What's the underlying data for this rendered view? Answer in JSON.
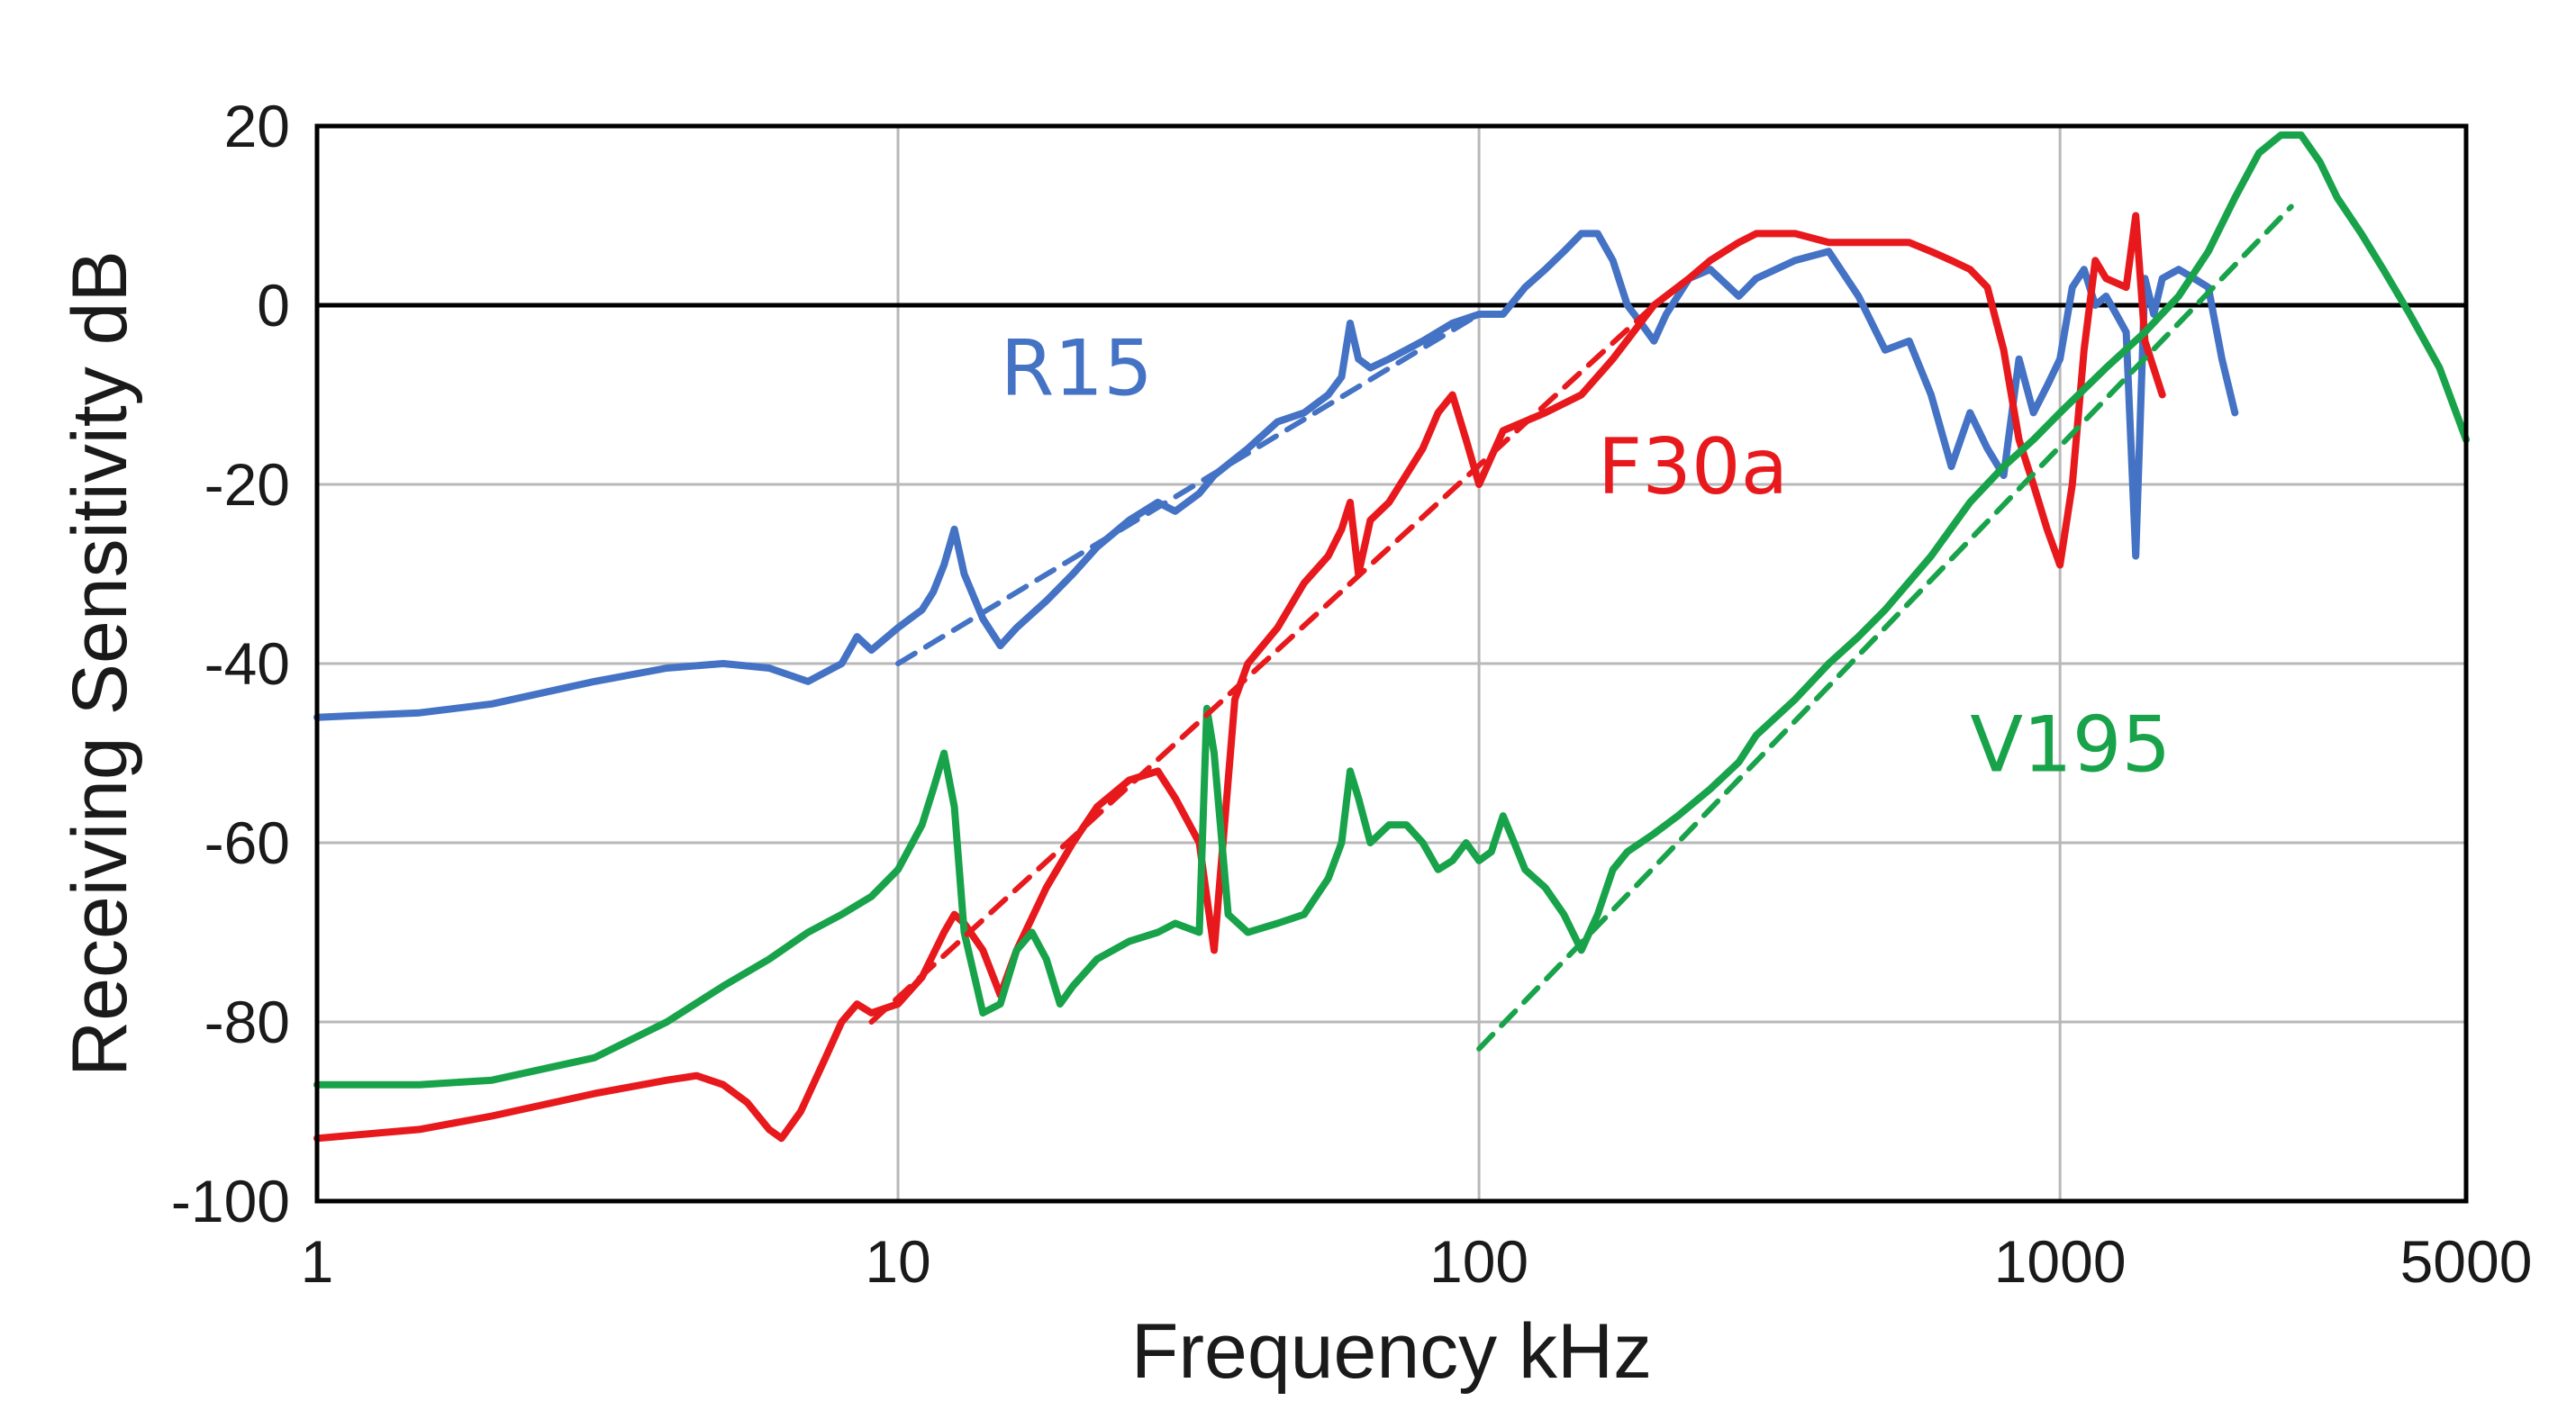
{
  "chart_data": {
    "type": "line",
    "xlabel": "Frequency  kHz",
    "ylabel": "Receiving Sensitivity  dB",
    "xscale": "log",
    "xlim": [
      1,
      5000
    ],
    "ylim": [
      -100,
      20
    ],
    "grid": true,
    "x_ticks": [
      1,
      10,
      100,
      1000,
      5000
    ],
    "x_tick_labels": [
      "1",
      "10",
      "100",
      "1000",
      "5000"
    ],
    "y_ticks": [
      -100,
      -80,
      -60,
      -40,
      -20,
      0,
      20
    ],
    "y_tick_labels": [
      "-100",
      "-80",
      "-60",
      "-40",
      "-20",
      "0",
      "20"
    ],
    "reference_line": {
      "y": 0,
      "color": "#000000"
    },
    "series": [
      {
        "name": "R15",
        "color": "#4472C4",
        "style": "solid",
        "x": [
          1,
          1.5,
          2,
          3,
          4,
          5,
          6,
          7,
          8,
          8.5,
          9,
          10,
          11,
          11.5,
          12,
          12.5,
          13,
          14,
          15,
          16,
          18,
          20,
          22,
          25,
          28,
          30,
          33,
          35,
          40,
          45,
          50,
          55,
          58,
          60,
          62,
          65,
          70,
          80,
          90,
          100,
          110,
          120,
          130,
          140,
          150,
          160,
          170,
          180,
          190,
          200,
          210,
          230,
          250,
          280,
          300,
          350,
          400,
          450,
          500,
          550,
          600,
          650,
          700,
          750,
          800,
          850,
          900,
          950,
          1000,
          1050,
          1100,
          1150,
          1200,
          1250,
          1300,
          1350,
          1400,
          1450,
          1500,
          1600,
          1700,
          1800,
          1900,
          2000
        ],
        "y": [
          -46,
          -45.5,
          -44.5,
          -42,
          -40.5,
          -40,
          -40.5,
          -42,
          -40,
          -37,
          -38.5,
          -36,
          -34,
          -32,
          -29,
          -25,
          -30,
          -35,
          -38,
          -36,
          -33,
          -30,
          -27,
          -24,
          -22,
          -23,
          -21,
          -19,
          -16,
          -13,
          -12,
          -10,
          -8,
          -2,
          -6,
          -7,
          -6,
          -4,
          -2,
          -1,
          -1,
          2,
          4,
          6,
          8,
          8,
          5,
          0,
          -2,
          -4,
          -1,
          3,
          4,
          1,
          3,
          5,
          6,
          1,
          -5,
          -4,
          -10,
          -18,
          -12,
          -16,
          -19,
          -6,
          -12,
          -9,
          -6,
          2,
          4,
          0,
          1,
          -1,
          -3,
          -28,
          3,
          -1,
          3,
          4,
          3,
          2,
          -6,
          -12
        ]
      },
      {
        "name": "F30a",
        "color": "#E8191C",
        "style": "solid",
        "x": [
          1,
          1.5,
          2,
          3,
          4,
          4.5,
          5,
          5.5,
          6,
          6.3,
          6.8,
          7.5,
          8,
          8.5,
          9,
          10,
          11,
          12,
          12.5,
          13,
          14,
          15,
          16,
          18,
          20,
          22,
          25,
          28,
          30,
          33,
          35,
          38,
          40,
          45,
          50,
          55,
          58,
          60,
          62,
          65,
          70,
          80,
          85,
          90,
          95,
          100,
          110,
          130,
          150,
          170,
          200,
          230,
          250,
          280,
          300,
          350,
          400,
          450,
          500,
          550,
          600,
          650,
          700,
          750,
          800,
          850,
          900,
          950,
          1000,
          1050,
          1100,
          1150,
          1200,
          1300,
          1350,
          1400,
          1500
        ],
        "y": [
          -93,
          -92,
          -90.5,
          -88,
          -86.5,
          -86,
          -87,
          -89,
          -92,
          -93,
          -90,
          -84,
          -80,
          -78,
          -79,
          -78,
          -75,
          -70,
          -68,
          -69,
          -72,
          -77,
          -72,
          -65,
          -60,
          -56,
          -53,
          -52,
          -55,
          -60,
          -72,
          -44,
          -40,
          -36,
          -31,
          -28,
          -25,
          -22,
          -30,
          -24,
          -22,
          -16,
          -12,
          -10,
          -15,
          -20,
          -14,
          -12,
          -10,
          -6,
          0,
          3,
          5,
          7,
          8,
          8,
          7,
          7,
          7,
          7,
          6,
          5,
          4,
          2,
          -5,
          -15,
          -20,
          -25,
          -29,
          -20,
          -5,
          5,
          3,
          2,
          10,
          -4,
          -10
        ]
      },
      {
        "name": "V195",
        "color": "#18A34A",
        "style": "solid",
        "x": [
          1,
          1.5,
          2,
          3,
          4,
          5,
          6,
          7,
          8,
          9,
          10,
          11,
          11.5,
          12,
          12.5,
          13,
          14,
          15,
          16,
          17,
          18,
          19,
          20,
          22,
          25,
          28,
          30,
          33,
          34,
          35,
          37,
          40,
          45,
          50,
          55,
          58,
          60,
          62,
          65,
          70,
          75,
          80,
          85,
          90,
          95,
          100,
          105,
          110,
          115,
          120,
          130,
          140,
          150,
          160,
          170,
          180,
          200,
          220,
          250,
          280,
          300,
          350,
          400,
          450,
          500,
          600,
          700,
          800,
          900,
          1000,
          1200,
          1400,
          1600,
          1800,
          2000,
          2200,
          2400,
          2600,
          2800,
          3000,
          3300,
          3600,
          4000,
          4500,
          5000
        ],
        "y": [
          -87,
          -87,
          -86.5,
          -84,
          -80,
          -76,
          -73,
          -70,
          -68,
          -66,
          -63,
          -58,
          -54,
          -50,
          -56,
          -70,
          -79,
          -78,
          -72,
          -70,
          -73,
          -78,
          -76,
          -73,
          -71,
          -70,
          -69,
          -70,
          -45,
          -50,
          -68,
          -70,
          -69,
          -68,
          -64,
          -60,
          -52,
          -55,
          -60,
          -58,
          -58,
          -60,
          -63,
          -62,
          -60,
          -62,
          -61,
          -57,
          -60,
          -63,
          -65,
          -68,
          -72,
          -68,
          -63,
          -61,
          -59,
          -57,
          -54,
          -51,
          -48,
          -44,
          -40,
          -37,
          -34,
          -28,
          -22,
          -18,
          -15,
          -12,
          -7,
          -3,
          1,
          6,
          12,
          17,
          19,
          19,
          16,
          12,
          8,
          4,
          -1,
          -7,
          -15
        ]
      },
      {
        "name": "R15 fit",
        "color": "#4472C4",
        "style": "dashed",
        "x": [
          10,
          100
        ],
        "y": [
          -40,
          -1
        ]
      },
      {
        "name": "F30a fit",
        "color": "#E8191C",
        "style": "dashed",
        "x": [
          9,
          200
        ],
        "y": [
          -80,
          0
        ]
      },
      {
        "name": "V195 fit",
        "color": "#18A34A",
        "style": "dashed",
        "x": [
          100,
          2500
        ],
        "y": [
          -83,
          11
        ]
      }
    ],
    "labels": [
      {
        "text": "R15",
        "color": "#4472C4",
        "x": 15,
        "y": -10
      },
      {
        "text": "F30a",
        "color": "#E8191C",
        "x": 160,
        "y": -21
      },
      {
        "text": "V195",
        "color": "#18A34A",
        "x": 700,
        "y": -52
      }
    ]
  }
}
